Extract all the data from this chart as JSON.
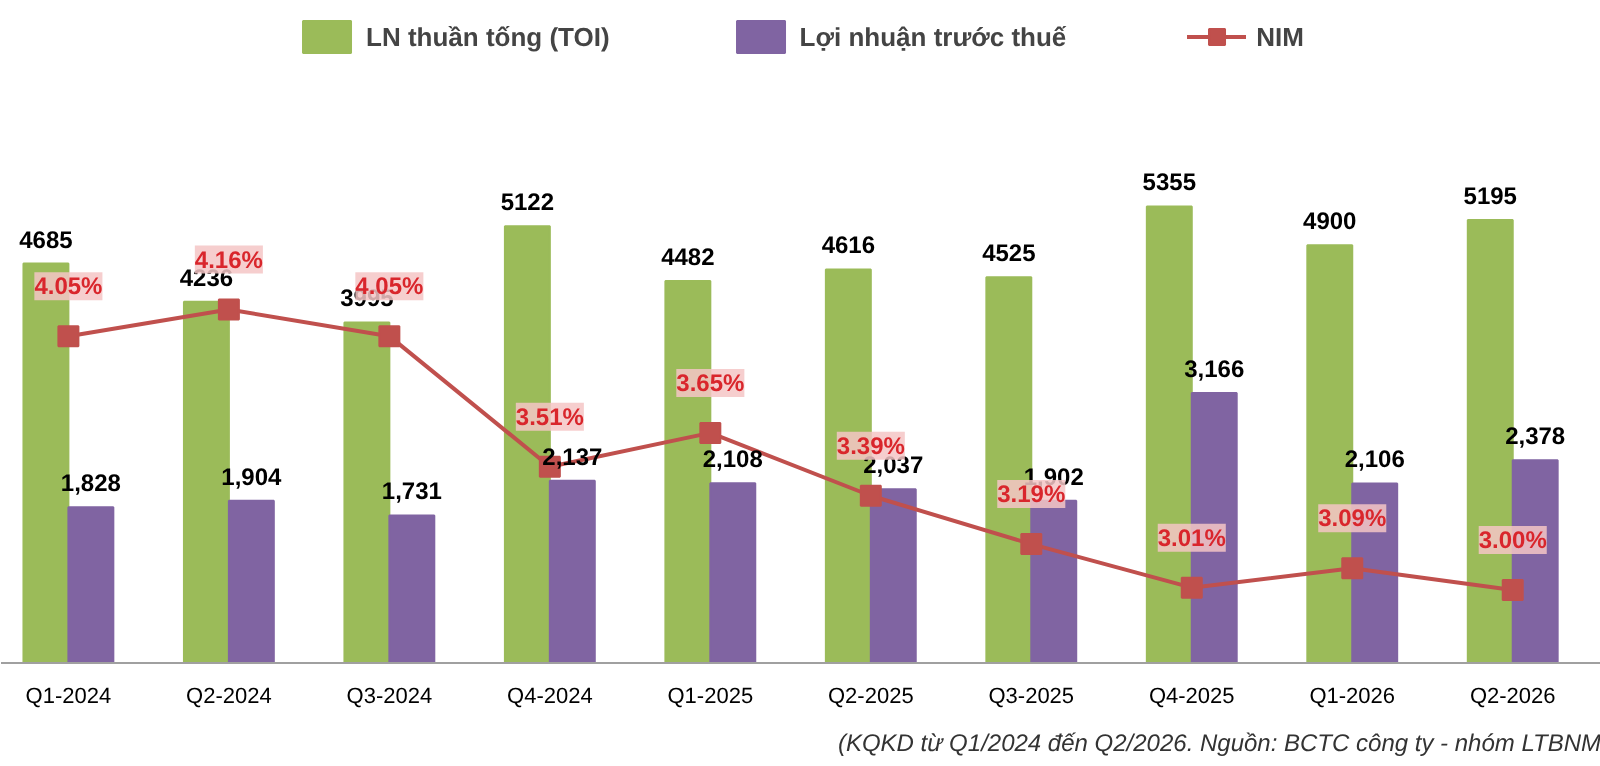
{
  "chart_data": {
    "type": "bar",
    "categories": [
      "Q1-2024",
      "Q2-2024",
      "Q3-2024",
      "Q4-2024",
      "Q1-2025",
      "Q2-2025",
      "Q3-2025",
      "Q4-2025",
      "Q1-2026",
      "Q2-2026"
    ],
    "series": [
      {
        "name": "LN thuần tống (TOI)",
        "color": "#9bbb59",
        "values": [
          4685,
          4236,
          3995,
          5122,
          4482,
          4616,
          4525,
          5355,
          4900,
          5195
        ],
        "value_labels": [
          "4685",
          "4236",
          "3995",
          "5122",
          "4482",
          "4616",
          "4525",
          "5355",
          "4900",
          "5195"
        ]
      },
      {
        "name": "Lợi nhuận trước thuế",
        "color": "#8064a2",
        "values": [
          1828,
          1904,
          1731,
          2137,
          2108,
          2037,
          1902,
          3166,
          2106,
          2378
        ],
        "value_labels": [
          "1,828",
          "1,904",
          "1,731",
          "2,137",
          "2,108",
          "2,037",
          "1,902",
          "3,166",
          "2,106",
          "2,378"
        ]
      },
      {
        "name": "NIM",
        "type": "line",
        "axis": "y2",
        "marker": "square",
        "color": "#c0504d",
        "values": [
          4.05,
          4.16,
          4.05,
          3.51,
          3.65,
          3.39,
          3.19,
          3.01,
          3.09,
          3.0
        ],
        "value_labels": [
          "4.05%",
          "4.16%",
          "4.05%",
          "3.51%",
          "3.65%",
          "3.39%",
          "3.19%",
          "3.01%",
          "3.09%",
          "3.00%"
        ]
      }
    ],
    "legend": "top",
    "grid": false,
    "annotations": [
      "(KQKD từ Q1/2024 đến Q2/2026. Nguồn: BCTC công ty - nhóm LTBNM"
    ]
  }
}
